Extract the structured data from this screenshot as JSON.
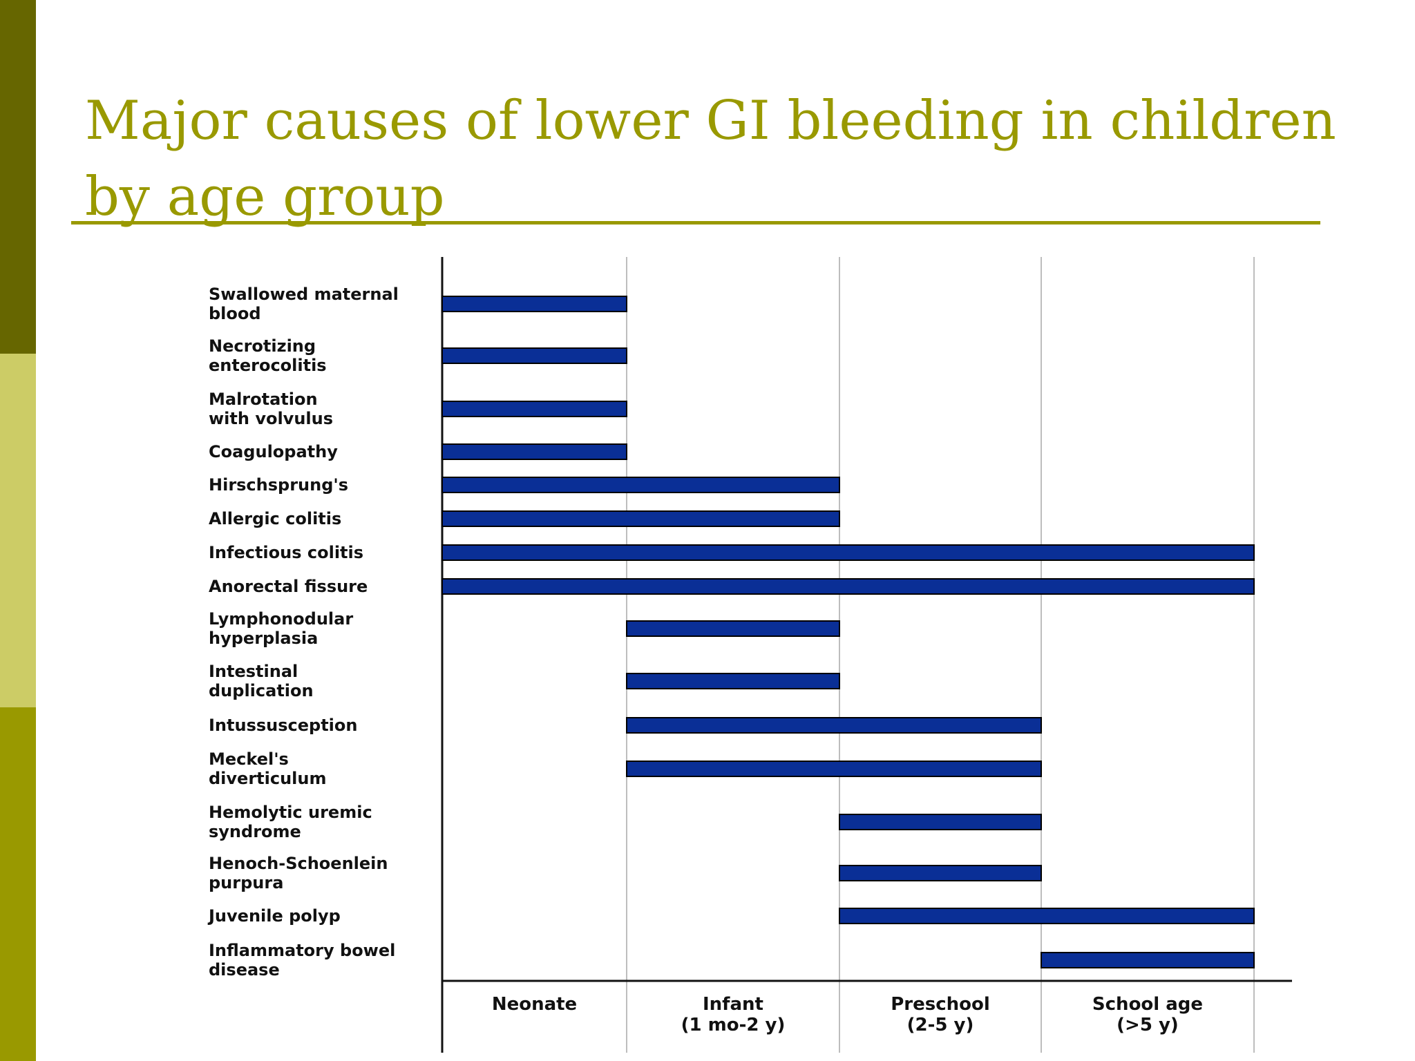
{
  "slide": {
    "title": "Major causes of lower GI bleeding in children by age group"
  },
  "colors": {
    "side_top": "#666600",
    "side_middle": "#cccc66",
    "side_bottom": "#999900",
    "title": "#999900",
    "bar_fill": "#0a2f96",
    "bar_stroke": "#000000",
    "grid": "#bdbdbd",
    "axis": "#111111"
  },
  "chart_data": {
    "type": "bar",
    "orientation": "horizontal-range",
    "title": "",
    "xlabel": "",
    "ylabel": "",
    "age_groups": [
      "Neonate",
      "Infant\n(1 mo-2 y)",
      "Preschool\n(2-5 y)",
      "School age\n(>5 y)"
    ],
    "grid": true,
    "causes": [
      {
        "label": "Swallowed maternal\nblood",
        "start": 0,
        "end": 1
      },
      {
        "label": "Necrotizing\nenterocolitis",
        "start": 0,
        "end": 1
      },
      {
        "label": "Malrotation\nwith volvulus",
        "start": 0,
        "end": 1
      },
      {
        "label": "Coagulopathy",
        "start": 0,
        "end": 1
      },
      {
        "label": "Hirschsprung's",
        "start": 0,
        "end": 2
      },
      {
        "label": "Allergic colitis",
        "start": 0,
        "end": 2
      },
      {
        "label": "Infectious colitis",
        "start": 0,
        "end": 4
      },
      {
        "label": "Anorectal fissure",
        "start": 0,
        "end": 4
      },
      {
        "label": "Lymphonodular\nhyperplasia",
        "start": 1,
        "end": 2
      },
      {
        "label": "Intestinal\nduplication",
        "start": 1,
        "end": 2
      },
      {
        "label": "Intussusception",
        "start": 1,
        "end": 3
      },
      {
        "label": "Meckel's\ndiverticulum",
        "start": 1,
        "end": 3
      },
      {
        "label": "Hemolytic uremic\nsyndrome",
        "start": 2,
        "end": 3
      },
      {
        "label": "Henoch-Schoenlein\npurpura",
        "start": 2,
        "end": 3
      },
      {
        "label": "Juvenile polyp",
        "start": 2,
        "end": 4
      },
      {
        "label": "Inflammatory bowel\ndisease",
        "start": 3,
        "end": 4
      }
    ]
  }
}
